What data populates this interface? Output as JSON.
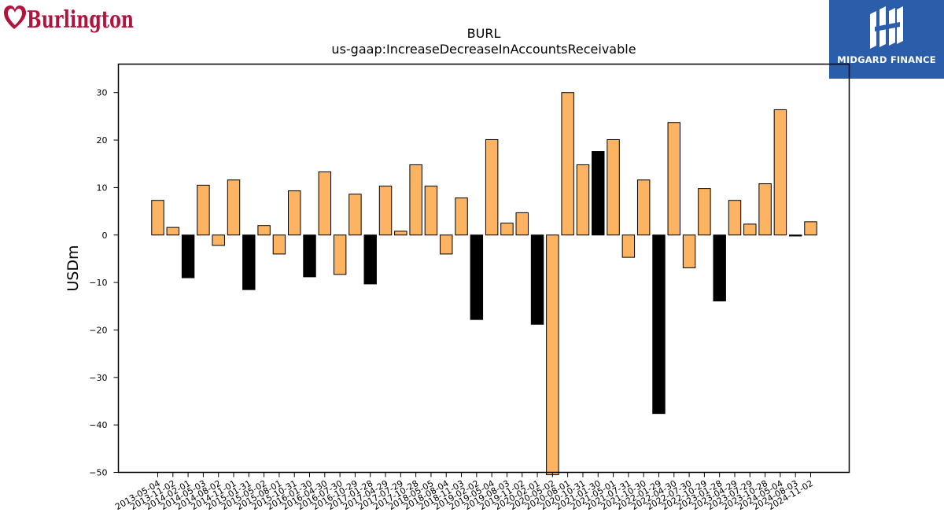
{
  "logos": {
    "left_brand": "Burlington",
    "right_brand": "MIDGARD FINANCE",
    "right_bg_color": "#2a5daa",
    "left_color": "#b3123c"
  },
  "colors": {
    "positive": "#fdb462",
    "negative": "#000000",
    "edge": "#000000"
  },
  "chart_data": {
    "type": "bar",
    "title": "BURL",
    "subtitle": "us-gaap:IncreaseDecreaseInAccountsReceivable",
    "xlabel": "",
    "ylabel": "USDm",
    "ylim": [
      -50,
      36
    ],
    "yticks": [
      30,
      20,
      10,
      0,
      -10,
      -20,
      -30,
      -40,
      -50
    ],
    "ytick_labels": [
      "30",
      "20",
      "10",
      "0",
      "−10",
      "−20",
      "−30",
      "−40",
      "−50"
    ],
    "grid": false,
    "categories": [
      "2013-05-04",
      "2013-11-02",
      "2014-02-01",
      "2014-05-03",
      "2014-08-02",
      "2014-11-01",
      "2015-01-31",
      "2015-05-02",
      "2015-08-01",
      "2015-10-31",
      "2016-01-30",
      "2016-04-30",
      "2016-07-30",
      "2016-10-29",
      "2017-01-28",
      "2017-04-29",
      "2017-07-29",
      "2017-10-28",
      "2018-05-05",
      "2018-08-04",
      "2018-11-03",
      "2019-02-02",
      "2019-05-04",
      "2019-08-03",
      "2019-11-02",
      "2020-02-01",
      "2020-05-02",
      "2020-08-01",
      "2020-10-31",
      "2021-01-30",
      "2021-05-01",
      "2021-07-31",
      "2021-10-30",
      "2022-01-29",
      "2022-04-30",
      "2022-07-30",
      "2022-10-29",
      "2023-01-28",
      "2023-04-29",
      "2023-07-29",
      "2023-10-28",
      "2024-05-04",
      "2024-08-03",
      "2024-11-02"
    ],
    "values": [
      7.3,
      1.6,
      -9.0,
      10.5,
      -2.2,
      11.6,
      -11.5,
      2.0,
      -4.0,
      9.3,
      -8.8,
      13.3,
      -8.3,
      8.6,
      -10.3,
      10.3,
      0.8,
      14.8,
      10.3,
      -4.0,
      7.8,
      -17.8,
      20.1,
      2.5,
      4.7,
      -18.8,
      -50.5,
      30.0,
      14.8,
      17.6,
      20.1,
      -4.7,
      11.6,
      -37.6,
      23.7,
      -6.9,
      9.8,
      -13.9,
      7.3,
      2.3,
      10.8,
      26.4,
      -0.2,
      2.8
    ],
    "is_black": [
      false,
      false,
      true,
      false,
      false,
      false,
      true,
      false,
      false,
      false,
      true,
      false,
      false,
      false,
      true,
      false,
      false,
      false,
      false,
      false,
      false,
      true,
      false,
      false,
      false,
      true,
      false,
      false,
      false,
      true,
      false,
      false,
      false,
      true,
      false,
      false,
      false,
      true,
      false,
      false,
      false,
      false,
      true,
      false
    ]
  }
}
